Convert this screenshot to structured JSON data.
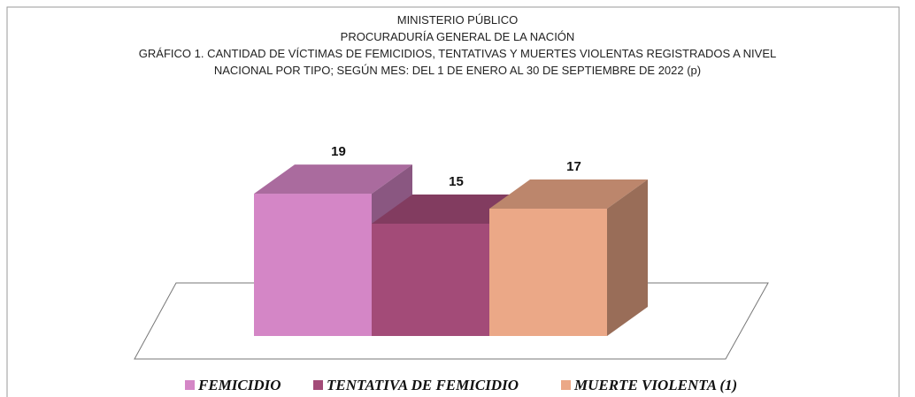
{
  "chart_data": {
    "type": "bar3d",
    "title": [
      "MINISTERIO PÚBLICO",
      "PROCURADURÍA GENERAL DE LA NACIÓN",
      "GRÁFICO 1. CANTIDAD DE VÍCTIMAS DE FEMICIDIOS, TENTATIVAS Y MUERTES VIOLENTAS REGISTRADOS A NIVEL",
      "NACIONAL POR TIPO; SEGÚN MES: DEL 1 DE ENERO AL 30 DE SEPTIEMBRE DE 2022 (p)"
    ],
    "categories": [
      "FEMICIDIO",
      "TENTATIVA DE FEMICIDIO",
      "MUERTE VIOLENTA (1)"
    ],
    "values": [
      19,
      15,
      17
    ],
    "colors": [
      "#d486c6",
      "#a34b78",
      "#eba887"
    ],
    "legend": "bottom"
  }
}
